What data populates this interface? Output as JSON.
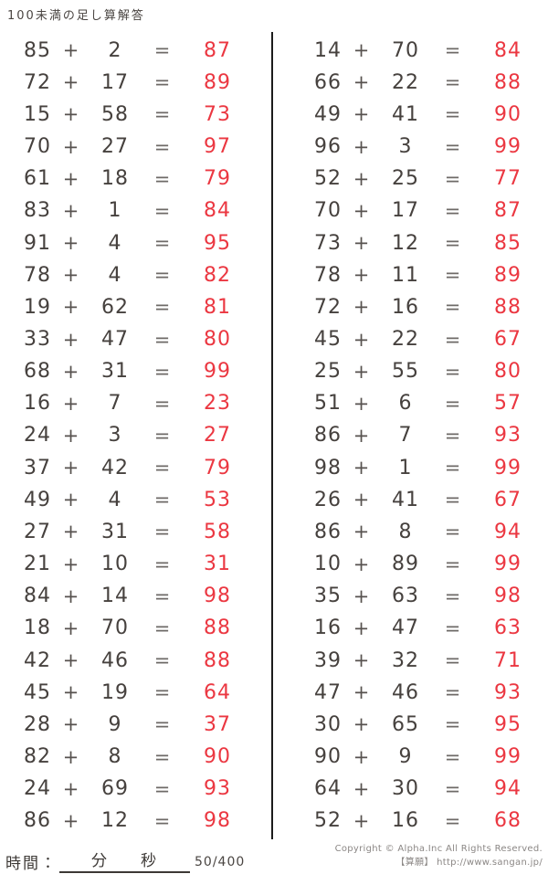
{
  "page": {
    "title": "100未満の足し算解答",
    "plus_sign": "+",
    "equals_sign": "=",
    "colors": {
      "answer_red": "#eb3741",
      "text_black": "#46413e",
      "divider_black": "#1c1c1c",
      "copyright_gray": "#8b8785"
    },
    "columns": [
      {
        "side": "left",
        "problems": [
          {
            "a": 85,
            "b": 2,
            "sum": 87
          },
          {
            "a": 72,
            "b": 17,
            "sum": 89
          },
          {
            "a": 15,
            "b": 58,
            "sum": 73
          },
          {
            "a": 70,
            "b": 27,
            "sum": 97
          },
          {
            "a": 61,
            "b": 18,
            "sum": 79
          },
          {
            "a": 83,
            "b": 1,
            "sum": 84
          },
          {
            "a": 91,
            "b": 4,
            "sum": 95
          },
          {
            "a": 78,
            "b": 4,
            "sum": 82
          },
          {
            "a": 19,
            "b": 62,
            "sum": 81
          },
          {
            "a": 33,
            "b": 47,
            "sum": 80
          },
          {
            "a": 68,
            "b": 31,
            "sum": 99
          },
          {
            "a": 16,
            "b": 7,
            "sum": 23
          },
          {
            "a": 24,
            "b": 3,
            "sum": 27
          },
          {
            "a": 37,
            "b": 42,
            "sum": 79
          },
          {
            "a": 49,
            "b": 4,
            "sum": 53
          },
          {
            "a": 27,
            "b": 31,
            "sum": 58
          },
          {
            "a": 21,
            "b": 10,
            "sum": 31
          },
          {
            "a": 84,
            "b": 14,
            "sum": 98
          },
          {
            "a": 18,
            "b": 70,
            "sum": 88
          },
          {
            "a": 42,
            "b": 46,
            "sum": 88
          },
          {
            "a": 45,
            "b": 19,
            "sum": 64
          },
          {
            "a": 28,
            "b": 9,
            "sum": 37
          },
          {
            "a": 82,
            "b": 8,
            "sum": 90
          },
          {
            "a": 24,
            "b": 69,
            "sum": 93
          },
          {
            "a": 86,
            "b": 12,
            "sum": 98
          }
        ]
      },
      {
        "side": "right",
        "problems": [
          {
            "a": 14,
            "b": 70,
            "sum": 84
          },
          {
            "a": 66,
            "b": 22,
            "sum": 88
          },
          {
            "a": 49,
            "b": 41,
            "sum": 90
          },
          {
            "a": 96,
            "b": 3,
            "sum": 99
          },
          {
            "a": 52,
            "b": 25,
            "sum": 77
          },
          {
            "a": 70,
            "b": 17,
            "sum": 87
          },
          {
            "a": 73,
            "b": 12,
            "sum": 85
          },
          {
            "a": 78,
            "b": 11,
            "sum": 89
          },
          {
            "a": 72,
            "b": 16,
            "sum": 88
          },
          {
            "a": 45,
            "b": 22,
            "sum": 67
          },
          {
            "a": 25,
            "b": 55,
            "sum": 80
          },
          {
            "a": 51,
            "b": 6,
            "sum": 57
          },
          {
            "a": 86,
            "b": 7,
            "sum": 93
          },
          {
            "a": 98,
            "b": 1,
            "sum": 99
          },
          {
            "a": 26,
            "b": 41,
            "sum": 67
          },
          {
            "a": 86,
            "b": 8,
            "sum": 94
          },
          {
            "a": 10,
            "b": 89,
            "sum": 99
          },
          {
            "a": 35,
            "b": 63,
            "sum": 98
          },
          {
            "a": 16,
            "b": 47,
            "sum": 63
          },
          {
            "a": 39,
            "b": 32,
            "sum": 71
          },
          {
            "a": 47,
            "b": 46,
            "sum": 93
          },
          {
            "a": 30,
            "b": 65,
            "sum": 95
          },
          {
            "a": 90,
            "b": 9,
            "sum": 99
          },
          {
            "a": 64,
            "b": 30,
            "sum": 94
          },
          {
            "a": 52,
            "b": 16,
            "sum": 68
          }
        ]
      }
    ],
    "footer": {
      "time_label": "時間：",
      "minutes_label": "分",
      "seconds_label": "秒",
      "page_indicator": "50/400",
      "copyright_line1": "Copyright © Alpha.Inc All Rights Reserved.",
      "copyright_line2": "【算願】 http://www.sangan.jp/"
    }
  }
}
